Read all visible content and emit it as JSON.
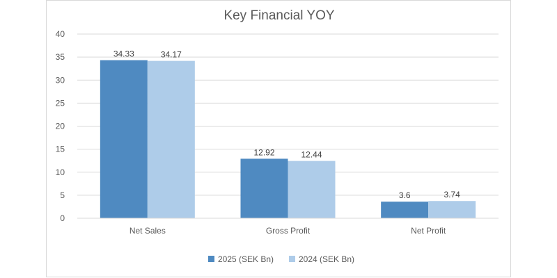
{
  "chart_data": {
    "type": "bar",
    "title": "Key Financial YOY",
    "categories": [
      "Net Sales",
      "Gross Profit",
      "Net Profit"
    ],
    "series": [
      {
        "name": "2025 (SEK Bn)",
        "values": [
          34.33,
          12.92,
          3.6
        ],
        "color": "#4f8ac1"
      },
      {
        "name": "2024 (SEK Bn)",
        "values": [
          34.17,
          12.44,
          3.74
        ],
        "color": "#aecce9"
      }
    ],
    "value_labels": [
      [
        "34.33",
        "12.92",
        "3.6"
      ],
      [
        "34.17",
        "12.44",
        "3.74"
      ]
    ],
    "yticks": [
      "0",
      "5",
      "10",
      "15",
      "20",
      "25",
      "30",
      "35",
      "40"
    ],
    "ylim": [
      0,
      40
    ],
    "xlabel": "",
    "ylabel": "",
    "grid": true,
    "legend_position": "bottom"
  },
  "colors": {
    "gridline": "#d9d9d9",
    "axis": "#d9d9d9"
  }
}
